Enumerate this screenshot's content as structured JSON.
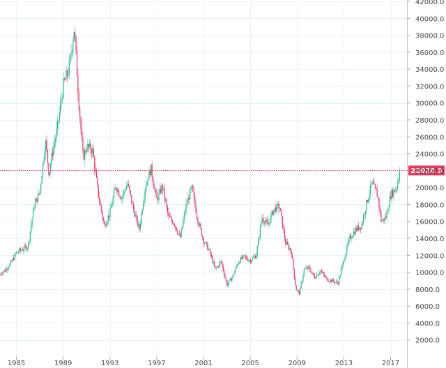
{
  "chart_data": {
    "type": "candlestick",
    "interval": "monthly",
    "x_range": [
      1983.6,
      2018.4
    ],
    "ylim": [
      0,
      42000
    ],
    "y_ticks": [
      2000,
      4000,
      6000,
      8000,
      10000,
      12000,
      14000,
      16000,
      18000,
      20000,
      22000,
      24000,
      26000,
      28000,
      30000,
      32000,
      34000,
      36000,
      38000,
      40000,
      42000
    ],
    "y_tick_labels": [
      "2000.0",
      "4000.0",
      "6000.0",
      "8000.0",
      "10000.0",
      "12000.0",
      "14000.0",
      "16000.0",
      "18000.0",
      "20000.0",
      "22000.0",
      "24000.0",
      "26000.0",
      "28000.0",
      "30000.0",
      "32000.0",
      "34000.0",
      "36000.0",
      "38000.0",
      "40000.0",
      "42000.0"
    ],
    "x_ticks": [
      1985,
      1989,
      1993,
      1997,
      2001,
      2005,
      2009,
      2013,
      2017
    ],
    "x_tick_labels": [
      "1985",
      "1989",
      "1993",
      "1997",
      "2001",
      "2005",
      "2009",
      "2013",
      "2017"
    ],
    "grid": true,
    "last_price": 22028.3,
    "last_price_label": "22028.3",
    "colors": {
      "up": "#26b98a",
      "down": "#e6385b",
      "grid": "#e8f2f6",
      "price_line": "#e6385b",
      "wick": "#8a8a8a"
    },
    "path": [
      [
        1983.6,
        9800
      ],
      [
        1984.0,
        10200
      ],
      [
        1984.5,
        11000
      ],
      [
        1985.0,
        12300
      ],
      [
        1985.5,
        12700
      ],
      [
        1986.0,
        13100
      ],
      [
        1986.5,
        17800
      ],
      [
        1987.0,
        19500
      ],
      [
        1987.5,
        25500
      ],
      [
        1987.8,
        21500
      ],
      [
        1988.0,
        23500
      ],
      [
        1988.5,
        27000
      ],
      [
        1989.0,
        32000
      ],
      [
        1989.5,
        34000
      ],
      [
        1989.95,
        38900
      ],
      [
        1990.3,
        31000
      ],
      [
        1990.7,
        23500
      ],
      [
        1991.0,
        24800
      ],
      [
        1991.5,
        24500
      ],
      [
        1992.0,
        19200
      ],
      [
        1992.5,
        15500
      ],
      [
        1993.0,
        17000
      ],
      [
        1993.5,
        20200
      ],
      [
        1994.0,
        18800
      ],
      [
        1994.5,
        20500
      ],
      [
        1995.0,
        17500
      ],
      [
        1995.5,
        15000
      ],
      [
        1996.0,
        20000
      ],
      [
        1996.5,
        22300
      ],
      [
        1997.0,
        18500
      ],
      [
        1997.5,
        20200
      ],
      [
        1998.0,
        16500
      ],
      [
        1998.5,
        15800
      ],
      [
        1999.0,
        14000
      ],
      [
        1999.5,
        17800
      ],
      [
        2000.0,
        20000
      ],
      [
        2000.5,
        16300
      ],
      [
        2001.0,
        13800
      ],
      [
        2001.5,
        12500
      ],
      [
        2002.0,
        10300
      ],
      [
        2002.5,
        11300
      ],
      [
        2003.0,
        8500
      ],
      [
        2003.5,
        9500
      ],
      [
        2004.0,
        11300
      ],
      [
        2004.5,
        11800
      ],
      [
        2005.0,
        11400
      ],
      [
        2005.5,
        12000
      ],
      [
        2006.0,
        16500
      ],
      [
        2006.5,
        15500
      ],
      [
        2007.0,
        17400
      ],
      [
        2007.5,
        17800
      ],
      [
        2008.0,
        13500
      ],
      [
        2008.5,
        12500
      ],
      [
        2008.9,
        8000
      ],
      [
        2009.2,
        7500
      ],
      [
        2009.6,
        10300
      ],
      [
        2010.0,
        10500
      ],
      [
        2010.5,
        9400
      ],
      [
        2011.0,
        10200
      ],
      [
        2011.5,
        9200
      ],
      [
        2012.0,
        9000
      ],
      [
        2012.5,
        8700
      ],
      [
        2013.0,
        11500
      ],
      [
        2013.5,
        14000
      ],
      [
        2014.0,
        15000
      ],
      [
        2014.5,
        15500
      ],
      [
        2015.0,
        18500
      ],
      [
        2015.4,
        20500
      ],
      [
        2015.9,
        19000
      ],
      [
        2016.2,
        16000
      ],
      [
        2016.6,
        16500
      ],
      [
        2017.0,
        19100
      ],
      [
        2017.5,
        20000
      ],
      [
        2017.8,
        22028
      ]
    ]
  }
}
